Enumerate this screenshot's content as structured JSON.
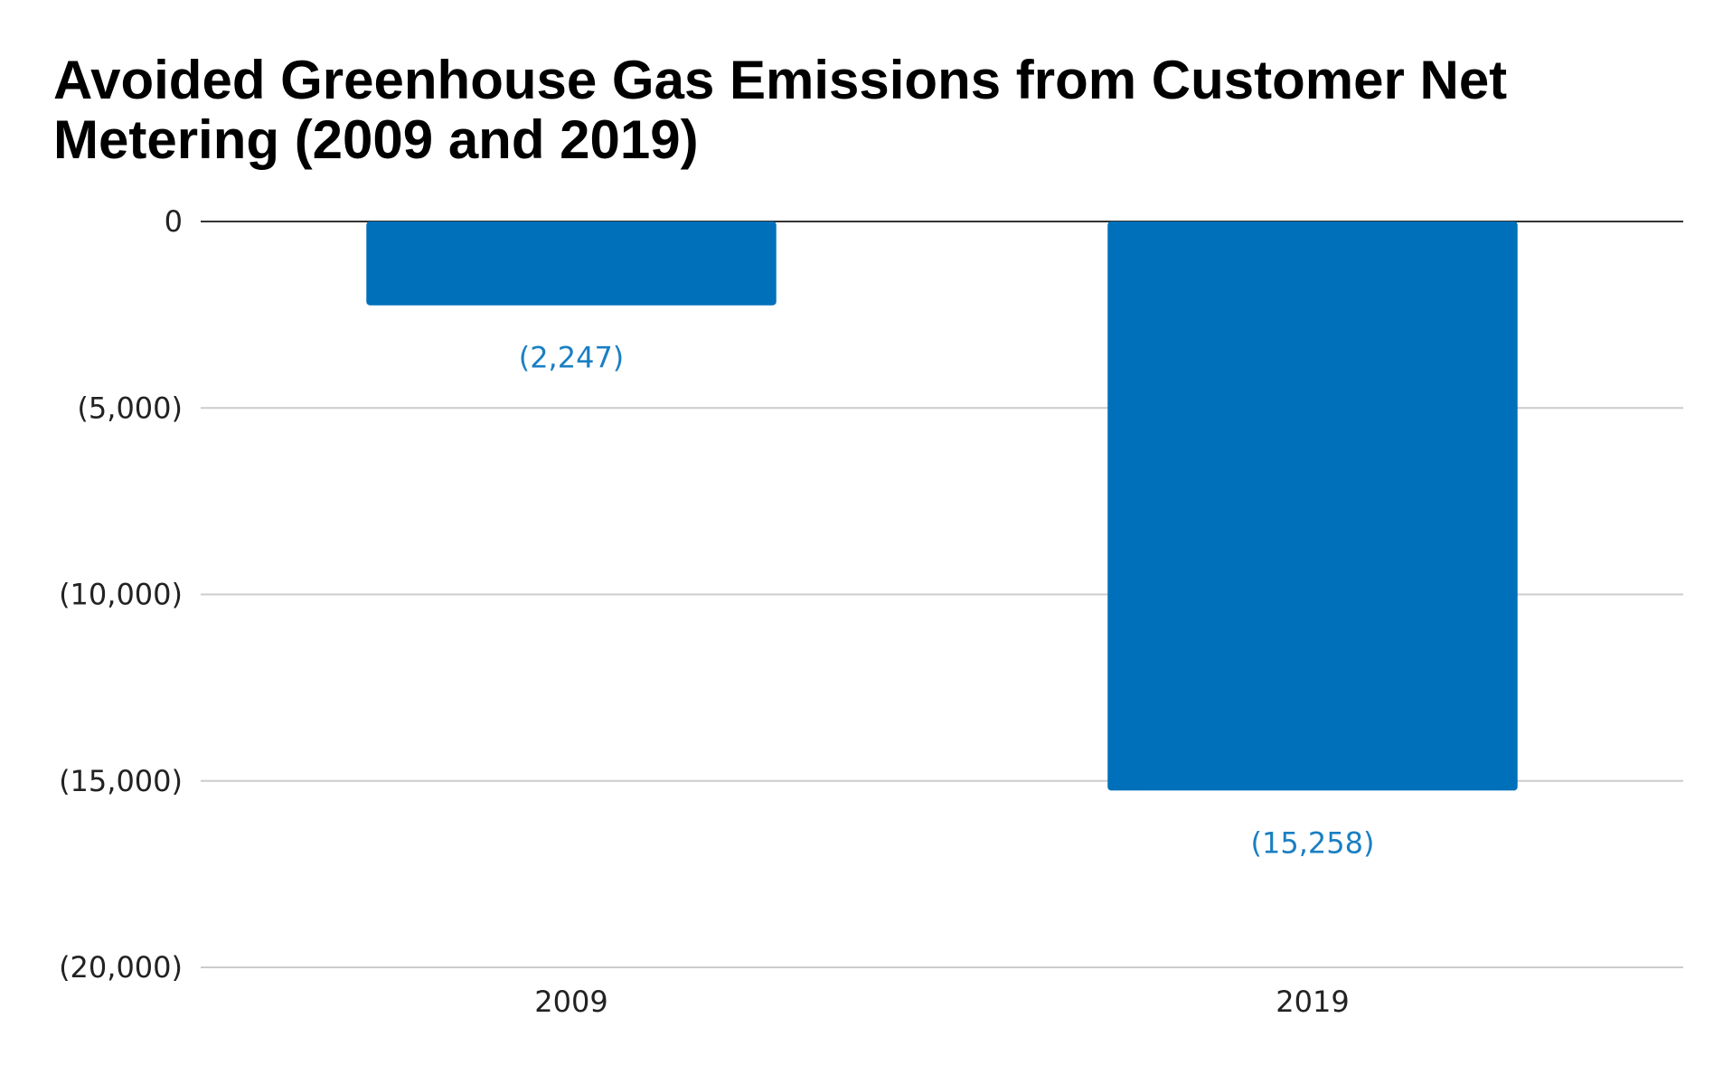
{
  "chart_data": {
    "type": "bar",
    "title": "Avoided Greenhouse Gas Emissions from Customer Net Metering (2009 and 2019)",
    "categories": [
      "2009",
      "2019"
    ],
    "values": [
      -2247,
      -15258
    ],
    "data_labels": [
      "(2,247)",
      "(15,258)"
    ],
    "ylim": [
      -20000,
      0
    ],
    "yticks": [
      0,
      -5000,
      -10000,
      -15000,
      -20000
    ],
    "ytick_labels": [
      "0",
      "(5,000)",
      "(10,000)",
      "(15,000)",
      "(20,000)"
    ],
    "xlabel": "",
    "ylabel": "",
    "grid": true,
    "legend": "none",
    "bar_color": "#0070BA",
    "label_color": "#1A7FC2",
    "gridline_color": "#CCCCCC",
    "zero_line_color": "#333333"
  }
}
